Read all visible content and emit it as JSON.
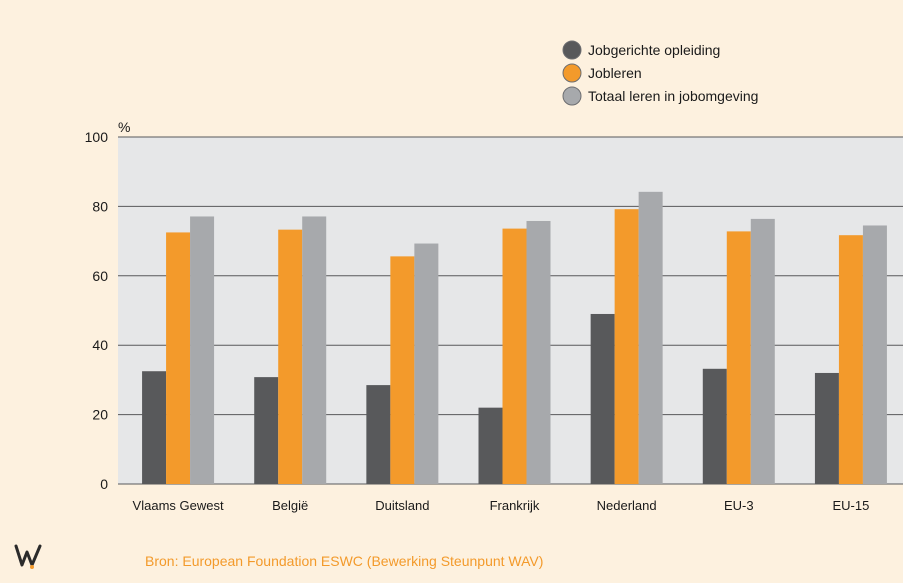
{
  "chart_data": {
    "type": "bar",
    "title": "",
    "ylabel": "%",
    "xlabel": "",
    "ylim": [
      0,
      100
    ],
    "yticks": [
      0,
      20,
      40,
      60,
      80,
      100
    ],
    "grid": true,
    "legend_position": "top-right",
    "categories": [
      "Vlaams Gewest",
      "België",
      "Duitsland",
      "Frankrijk",
      "Nederland",
      "EU-3",
      "EU-15"
    ],
    "series": [
      {
        "name": "Jobgerichte opleiding",
        "color": "#58595b",
        "values": [
          32.5,
          30.8,
          28.5,
          22.0,
          49.0,
          33.2,
          32.0
        ]
      },
      {
        "name": "Jobleren",
        "color": "#f39a2b",
        "values": [
          72.5,
          73.3,
          65.6,
          73.6,
          79.2,
          72.8,
          71.7
        ]
      },
      {
        "name": "Totaal leren in jobomgeving",
        "color": "#a7a9ac",
        "values": [
          77.1,
          77.1,
          69.3,
          75.8,
          84.2,
          76.4,
          74.5
        ]
      }
    ]
  },
  "footer": {
    "source": "Bron: European Foundation ESWC (Bewerking Steunpunt WAV)"
  },
  "colors": {
    "page_background": "#fdf1df",
    "plot_background": "#e6e7e8",
    "grid": "#58595b",
    "logo": "#2b2b2b",
    "logo_accent": "#f39a2b",
    "source_text": "#f39a2b"
  },
  "logo": {
    "icon": "wav-logo"
  }
}
